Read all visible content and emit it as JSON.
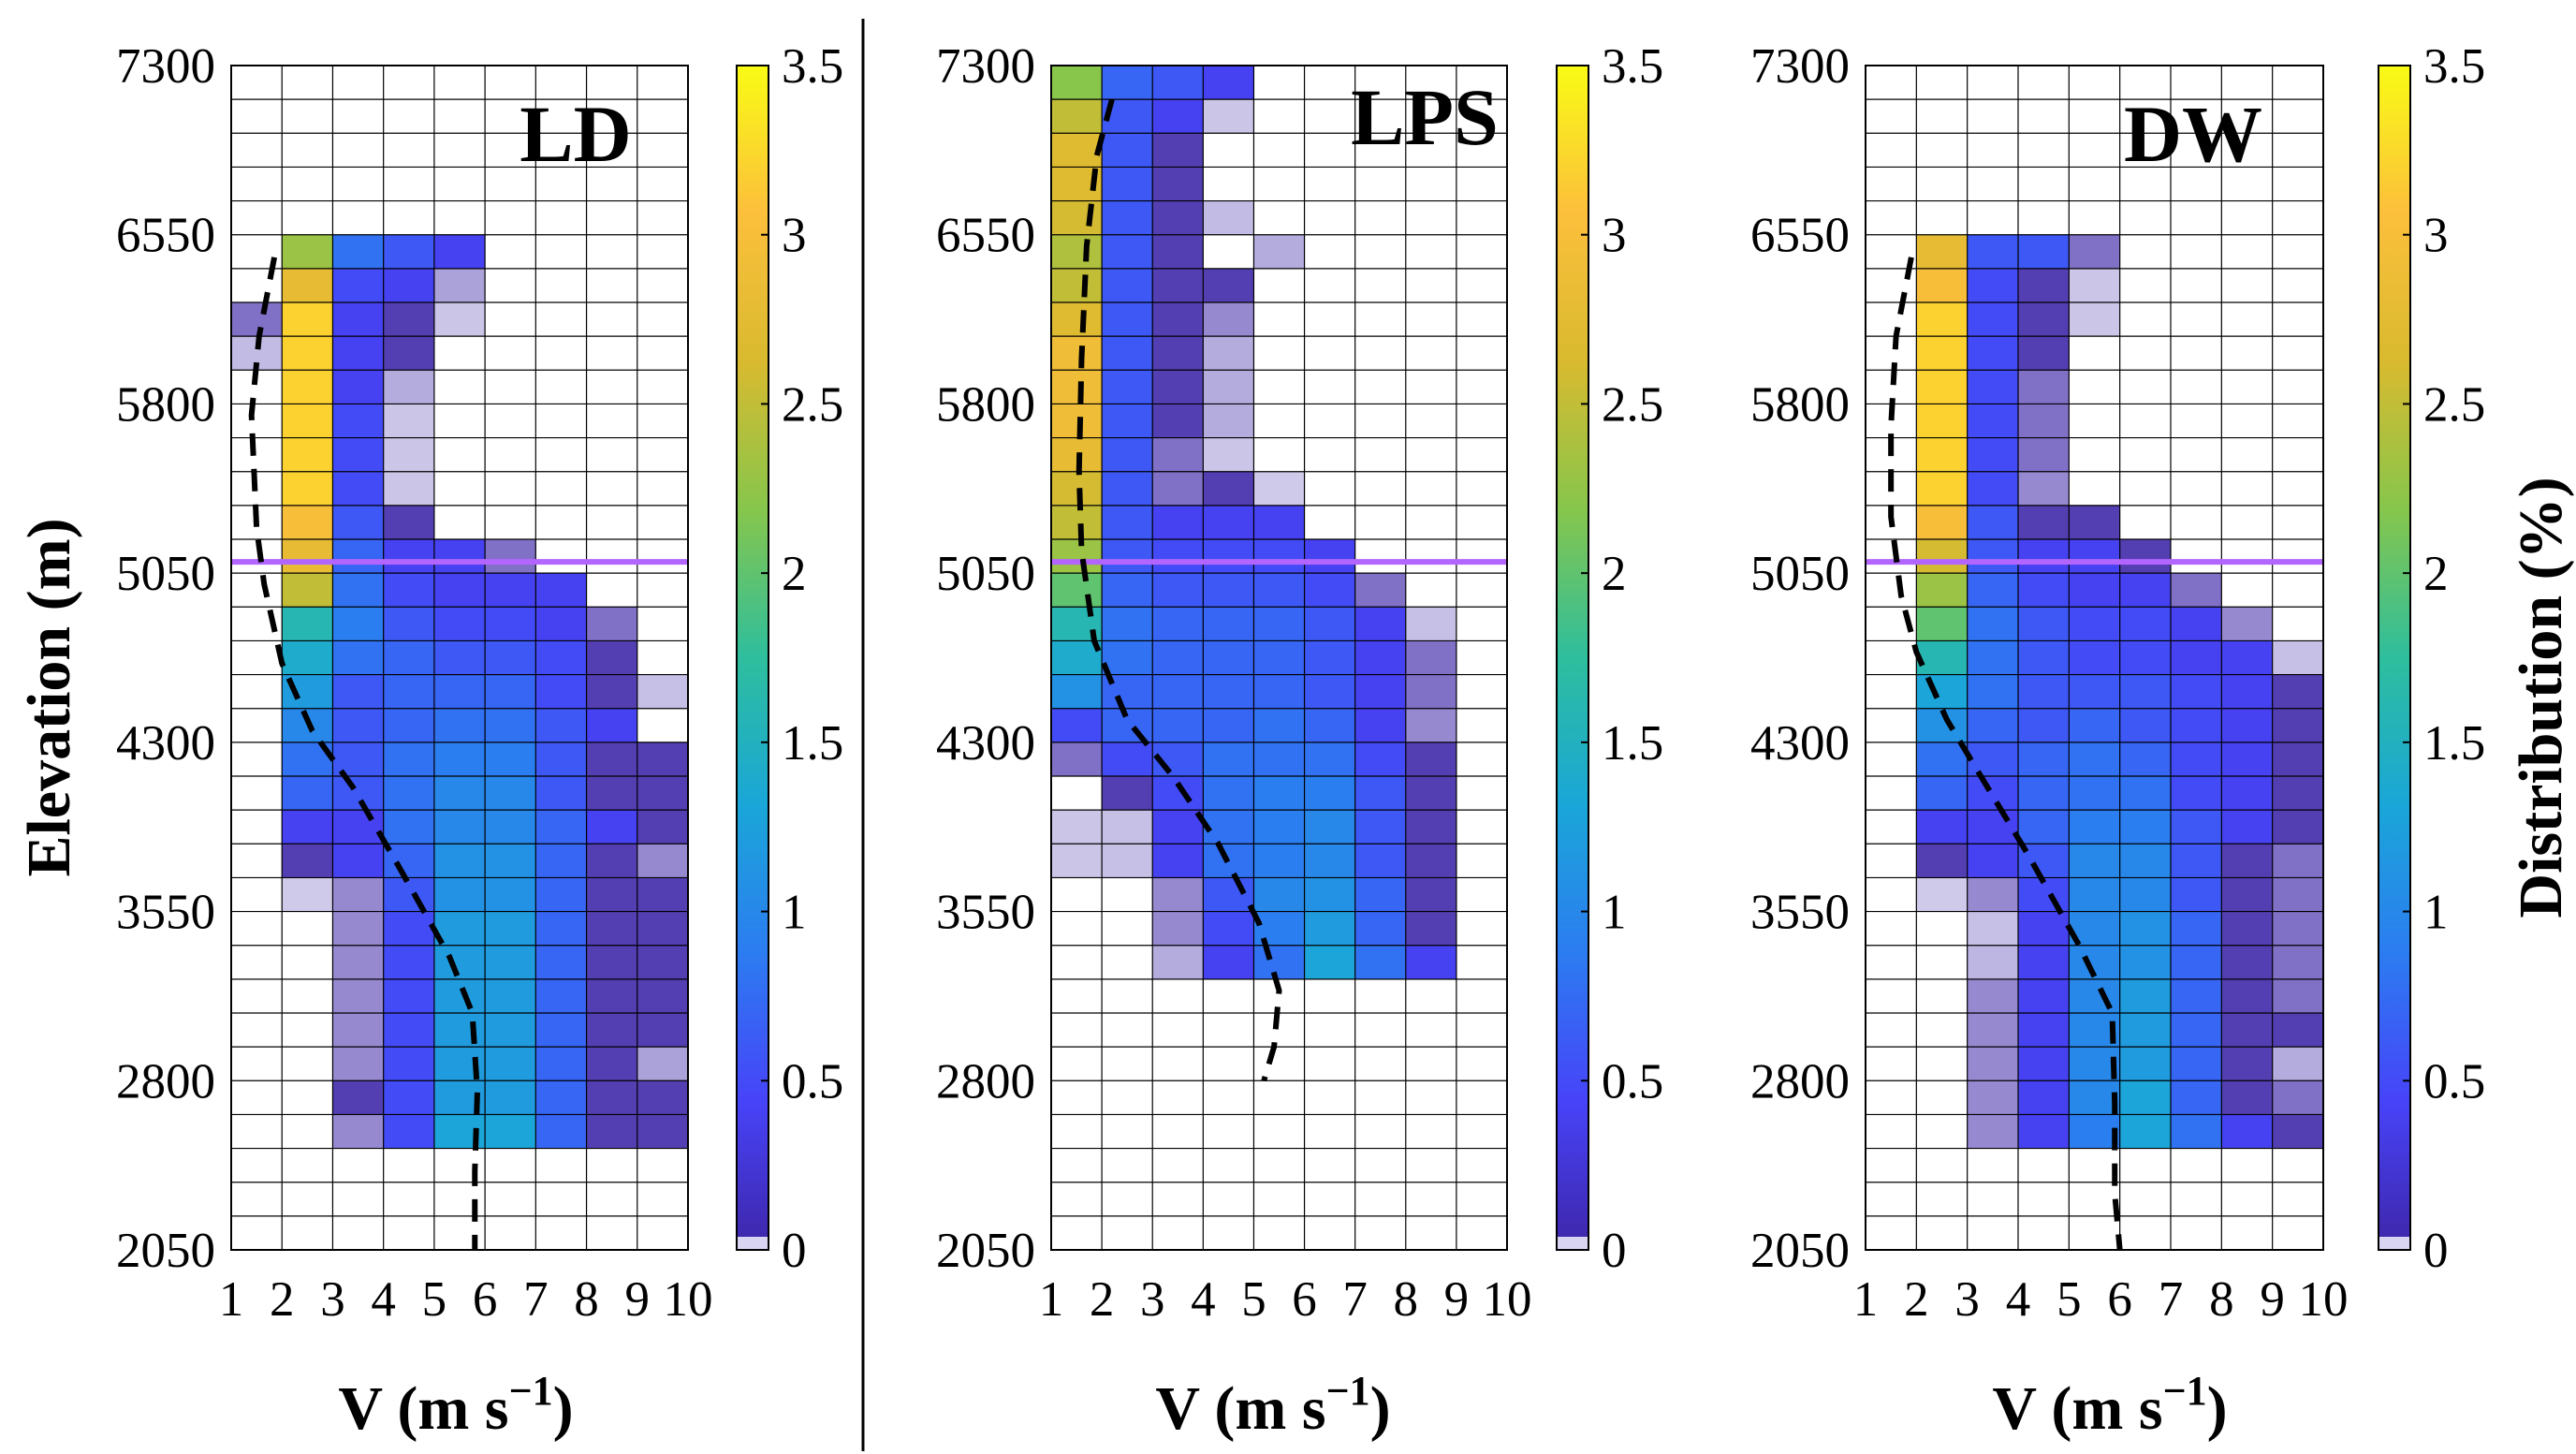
{
  "colors": {
    "colormap": "parula",
    "colormap_stops": [
      "#3e26a8",
      "#4743f8",
      "#2c7cf1",
      "#1aa6d8",
      "#2ebe9d",
      "#86c64c",
      "#d9ba2f",
      "#fcbf3c",
      "#f9fb15"
    ],
    "low_value_tint": "#ffffff",
    "snowline": "#b266ff",
    "fit_curve": "#000000",
    "grid": "#000000",
    "divider": "#000000"
  },
  "chart_data": [
    {
      "type": "heatmap",
      "title": "LD",
      "xlabel": "V (m s",
      "xlabel_sup": "−1",
      "xlabel_close": ")",
      "ylabel": "Elevation (m)",
      "xticks": [
        "1",
        "2",
        "3",
        "4",
        "5",
        "6",
        "7",
        "8",
        "9",
        "10"
      ],
      "yticks": [
        "7300",
        "6550",
        "5800",
        "5050",
        "4300",
        "3550",
        "2800",
        "2050"
      ],
      "xlim": [
        1,
        10
      ],
      "ylim": [
        2050,
        7300
      ],
      "elevation_bin_m": 150,
      "speed_bin_ms": 1,
      "grid": true,
      "colorbar": {
        "min": 0,
        "max": 3.5,
        "ticks": [
          "3.5",
          "3",
          "2.5",
          "2",
          "1.5",
          "1",
          "0.5",
          "0"
        ]
      },
      "snowline_elevation_m": 5100,
      "dashed_curve": [
        [
          1.85,
          6450
        ],
        [
          1.55,
          6100
        ],
        [
          1.4,
          5750
        ],
        [
          1.5,
          5250
        ],
        [
          1.65,
          5000
        ],
        [
          2.0,
          4650
        ],
        [
          2.6,
          4350
        ],
        [
          3.4,
          4100
        ],
        [
          4.3,
          3750
        ],
        [
          5.3,
          3350
        ],
        [
          5.75,
          3100
        ],
        [
          5.85,
          2750
        ],
        [
          5.8,
          2400
        ],
        [
          5.8,
          2050
        ]
      ],
      "rows_top_elevation_m": 6550,
      "values": [
        [
          0,
          2.3,
          0.8,
          0.6,
          0.4,
          0,
          0,
          0,
          0
        ],
        [
          0,
          2.8,
          0.5,
          0.4,
          0.1,
          0,
          0,
          0,
          0
        ],
        [
          0.2,
          3.2,
          0.4,
          0.3,
          0.03,
          0,
          0,
          0,
          0
        ],
        [
          0.05,
          3.2,
          0.4,
          0.3,
          0,
          0,
          0,
          0,
          0
        ],
        [
          0,
          3.2,
          0.4,
          0.08,
          0,
          0,
          0,
          0,
          0
        ],
        [
          0,
          3.2,
          0.5,
          0.03,
          0,
          0,
          0,
          0,
          0
        ],
        [
          0,
          3.2,
          0.5,
          0.03,
          0,
          0,
          0,
          0,
          0
        ],
        [
          0,
          3.2,
          0.5,
          0.03,
          0,
          0,
          0,
          0,
          0
        ],
        [
          0,
          3.0,
          0.6,
          0.3,
          0,
          0,
          0,
          0,
          0
        ],
        [
          0,
          2.8,
          0.7,
          0.4,
          0.4,
          0.2,
          0,
          0,
          0
        ],
        [
          0,
          2.5,
          0.8,
          0.5,
          0.4,
          0.4,
          0.4,
          0,
          0
        ],
        [
          0,
          1.6,
          0.9,
          0.6,
          0.5,
          0.5,
          0.4,
          0.2,
          0
        ],
        [
          0,
          1.4,
          0.8,
          0.7,
          0.6,
          0.6,
          0.5,
          0.3,
          0
        ],
        [
          0,
          1.2,
          0.6,
          0.7,
          0.7,
          0.7,
          0.5,
          0.3,
          0.04
        ],
        [
          0,
          1.0,
          0.6,
          0.7,
          0.8,
          0.8,
          0.6,
          0.4,
          0
        ],
        [
          0,
          0.8,
          0.6,
          0.8,
          0.9,
          0.9,
          0.6,
          0.3,
          0.3
        ],
        [
          0,
          0.7,
          0.6,
          0.8,
          1.0,
          1.0,
          0.6,
          0.3,
          0.3
        ],
        [
          0,
          0.4,
          0.4,
          0.8,
          1.0,
          1.0,
          0.7,
          0.4,
          0.3
        ],
        [
          0,
          0.3,
          0.4,
          0.7,
          1.1,
          1.1,
          0.7,
          0.3,
          0.15
        ],
        [
          0,
          0.02,
          0.15,
          0.6,
          1.1,
          1.1,
          0.7,
          0.3,
          0.3
        ],
        [
          0,
          0,
          0.15,
          0.5,
          1.2,
          1.2,
          0.7,
          0.3,
          0.3
        ],
        [
          0,
          0,
          0.15,
          0.5,
          1.2,
          1.2,
          0.7,
          0.3,
          0.3
        ],
        [
          0,
          0,
          0.15,
          0.5,
          1.2,
          1.2,
          0.7,
          0.3,
          0.3
        ],
        [
          0,
          0,
          0.15,
          0.5,
          1.2,
          1.2,
          0.7,
          0.3,
          0.3
        ],
        [
          0,
          0,
          0.15,
          0.5,
          1.2,
          1.2,
          0.7,
          0.3,
          0.1
        ],
        [
          0,
          0,
          0.3,
          0.5,
          1.2,
          1.2,
          0.7,
          0.3,
          0.3
        ],
        [
          0,
          0,
          0.15,
          0.5,
          1.3,
          1.3,
          0.7,
          0.3,
          0.3
        ]
      ]
    },
    {
      "type": "heatmap",
      "title": "LPS",
      "xlabel": "V (m s",
      "xlabel_sup": "−1",
      "xlabel_close": ")",
      "ylabel": "",
      "xticks": [
        "1",
        "2",
        "3",
        "4",
        "5",
        "6",
        "7",
        "8",
        "9",
        "10"
      ],
      "yticks": [
        "7300",
        "6550",
        "5800",
        "5050",
        "4300",
        "3550",
        "2800",
        "2050"
      ],
      "xlim": [
        1,
        10
      ],
      "ylim": [
        2050,
        7300
      ],
      "elevation_bin_m": 150,
      "speed_bin_ms": 1,
      "grid": true,
      "colorbar": {
        "min": 0,
        "max": 3.5,
        "ticks": [
          "3.5",
          "3",
          "2.5",
          "2",
          "1.5",
          "1",
          "0.5",
          "0"
        ]
      },
      "snowline_elevation_m": 5100,
      "dashed_curve": [
        [
          2.2,
          7150
        ],
        [
          1.9,
          6900
        ],
        [
          1.7,
          6500
        ],
        [
          1.6,
          6000
        ],
        [
          1.55,
          5500
        ],
        [
          1.6,
          5150
        ],
        [
          1.85,
          4750
        ],
        [
          2.5,
          4400
        ],
        [
          3.4,
          4150
        ],
        [
          4.3,
          3850
        ],
        [
          5.1,
          3500
        ],
        [
          5.5,
          3200
        ],
        [
          5.4,
          2950
        ],
        [
          5.2,
          2800
        ]
      ],
      "rows_top_elevation_m": 7300,
      "values": [
        [
          2.2,
          0.7,
          0.6,
          0.4,
          0,
          0,
          0,
          0,
          0
        ],
        [
          2.5,
          0.6,
          0.4,
          0.03,
          0,
          0,
          0,
          0,
          0
        ],
        [
          2.7,
          0.6,
          0.3,
          0,
          0,
          0,
          0,
          0,
          0
        ],
        [
          2.7,
          0.6,
          0.3,
          0,
          0,
          0,
          0,
          0,
          0
        ],
        [
          2.6,
          0.6,
          0.3,
          0.05,
          0,
          0,
          0,
          0,
          0
        ],
        [
          2.4,
          0.6,
          0.3,
          0,
          0.08,
          0,
          0,
          0,
          0
        ],
        [
          2.5,
          0.6,
          0.3,
          0.3,
          0,
          0,
          0,
          0,
          0
        ],
        [
          2.7,
          0.6,
          0.3,
          0.15,
          0,
          0,
          0,
          0,
          0
        ],
        [
          2.9,
          0.6,
          0.3,
          0.08,
          0,
          0,
          0,
          0,
          0
        ],
        [
          2.9,
          0.6,
          0.3,
          0.08,
          0,
          0,
          0,
          0,
          0
        ],
        [
          2.9,
          0.6,
          0.3,
          0.08,
          0,
          0,
          0,
          0,
          0
        ],
        [
          2.8,
          0.6,
          0.2,
          0.03,
          0,
          0,
          0,
          0,
          0
        ],
        [
          2.6,
          0.6,
          0.2,
          0.3,
          0.02,
          0,
          0,
          0,
          0
        ],
        [
          2.5,
          0.6,
          0.4,
          0.4,
          0.4,
          0,
          0,
          0,
          0
        ],
        [
          2.3,
          0.6,
          0.5,
          0.5,
          0.5,
          0.4,
          0,
          0,
          0
        ],
        [
          2.0,
          0.7,
          0.6,
          0.6,
          0.6,
          0.5,
          0.2,
          0,
          0
        ],
        [
          1.6,
          0.8,
          0.7,
          0.7,
          0.7,
          0.6,
          0.4,
          0.04,
          0
        ],
        [
          1.4,
          0.8,
          0.7,
          0.7,
          0.7,
          0.6,
          0.4,
          0.2,
          0
        ],
        [
          1.1,
          0.7,
          0.7,
          0.7,
          0.7,
          0.6,
          0.4,
          0.2,
          0
        ],
        [
          0.5,
          0.7,
          0.7,
          0.7,
          0.8,
          0.7,
          0.4,
          0.15,
          0
        ],
        [
          0.2,
          0.5,
          0.6,
          0.8,
          0.8,
          0.8,
          0.5,
          0.3,
          0
        ],
        [
          0,
          0.3,
          0.5,
          0.8,
          0.9,
          0.9,
          0.6,
          0.3,
          0
        ],
        [
          0.03,
          0.04,
          0.4,
          0.8,
          0.9,
          1.0,
          0.6,
          0.3,
          0
        ],
        [
          0.03,
          0.04,
          0.4,
          0.8,
          0.9,
          1.0,
          0.6,
          0.3,
          0
        ],
        [
          0,
          0,
          0.15,
          0.6,
          1.0,
          1.1,
          0.7,
          0.3,
          0
        ],
        [
          0,
          0,
          0.15,
          0.5,
          0.9,
          1.2,
          0.7,
          0.3,
          0
        ],
        [
          0,
          0,
          0.08,
          0.4,
          0.8,
          1.3,
          0.8,
          0.4,
          0
        ]
      ]
    },
    {
      "type": "heatmap",
      "title": "DW",
      "xlabel": "V (m s",
      "xlabel_sup": "−1",
      "xlabel_close": ")",
      "ylabel": "",
      "colorbar_label": "Distribution (%)",
      "xticks": [
        "1",
        "2",
        "3",
        "4",
        "5",
        "6",
        "7",
        "8",
        "9",
        "10"
      ],
      "yticks": [
        "7300",
        "6550",
        "5800",
        "5050",
        "4300",
        "3550",
        "2800",
        "2050"
      ],
      "xlim": [
        1,
        10
      ],
      "ylim": [
        2050,
        7300
      ],
      "elevation_bin_m": 150,
      "speed_bin_ms": 1,
      "grid": true,
      "colorbar": {
        "min": 0,
        "max": 3.5,
        "ticks": [
          "3.5",
          "3",
          "2.5",
          "2",
          "1.5",
          "1",
          "0.5",
          "0"
        ]
      },
      "snowline_elevation_m": 5100,
      "dashed_curve": [
        [
          1.9,
          6450
        ],
        [
          1.6,
          6100
        ],
        [
          1.5,
          5700
        ],
        [
          1.5,
          5300
        ],
        [
          1.7,
          4950
        ],
        [
          2.0,
          4700
        ],
        [
          2.6,
          4400
        ],
        [
          3.4,
          4100
        ],
        [
          4.2,
          3800
        ],
        [
          5.2,
          3400
        ],
        [
          5.85,
          3100
        ],
        [
          5.9,
          2700
        ],
        [
          5.9,
          2300
        ],
        [
          6.0,
          2050
        ]
      ],
      "rows_top_elevation_m": 6550,
      "values": [
        [
          0,
          2.8,
          0.6,
          0.6,
          0.2,
          0,
          0,
          0,
          0
        ],
        [
          0,
          3.0,
          0.5,
          0.3,
          0.03,
          0,
          0,
          0,
          0
        ],
        [
          0,
          3.2,
          0.5,
          0.3,
          0.03,
          0,
          0,
          0,
          0
        ],
        [
          0,
          3.2,
          0.5,
          0.3,
          0,
          0,
          0,
          0,
          0
        ],
        [
          0,
          3.2,
          0.5,
          0.2,
          0,
          0,
          0,
          0,
          0
        ],
        [
          0,
          3.2,
          0.5,
          0.2,
          0,
          0,
          0,
          0,
          0
        ],
        [
          0,
          3.2,
          0.5,
          0.2,
          0,
          0,
          0,
          0,
          0
        ],
        [
          0,
          3.2,
          0.5,
          0.15,
          0,
          0,
          0,
          0,
          0
        ],
        [
          0,
          3.0,
          0.6,
          0.3,
          0.3,
          0,
          0,
          0,
          0
        ],
        [
          0,
          2.6,
          0.6,
          0.4,
          0.4,
          0.3,
          0,
          0,
          0
        ],
        [
          0,
          2.3,
          0.7,
          0.5,
          0.4,
          0.4,
          0.2,
          0,
          0
        ],
        [
          0,
          2.0,
          0.8,
          0.6,
          0.5,
          0.5,
          0.4,
          0.15,
          0
        ],
        [
          0,
          1.6,
          0.8,
          0.6,
          0.5,
          0.5,
          0.4,
          0.4,
          0.04
        ],
        [
          0,
          1.3,
          0.8,
          0.6,
          0.6,
          0.6,
          0.5,
          0.4,
          0.3
        ],
        [
          0,
          1.1,
          0.7,
          0.6,
          0.7,
          0.6,
          0.5,
          0.4,
          0.3
        ],
        [
          0,
          0.8,
          0.6,
          0.7,
          0.8,
          0.7,
          0.5,
          0.4,
          0.3
        ],
        [
          0,
          0.7,
          0.5,
          0.7,
          0.8,
          0.8,
          0.5,
          0.4,
          0.3
        ],
        [
          0,
          0.4,
          0.4,
          0.7,
          0.9,
          0.9,
          0.6,
          0.4,
          0.3
        ],
        [
          0,
          0.3,
          0.4,
          0.6,
          1.0,
          1.0,
          0.6,
          0.3,
          0.2
        ],
        [
          0,
          0.02,
          0.15,
          0.5,
          1.0,
          1.0,
          0.6,
          0.3,
          0.2
        ],
        [
          0,
          0,
          0.04,
          0.4,
          1.0,
          1.1,
          0.7,
          0.3,
          0.2
        ],
        [
          0,
          0,
          0.06,
          0.4,
          1.0,
          1.1,
          0.7,
          0.3,
          0.2
        ],
        [
          0,
          0,
          0.15,
          0.4,
          1.0,
          1.2,
          0.7,
          0.3,
          0.2
        ],
        [
          0,
          0,
          0.15,
          0.4,
          1.0,
          1.2,
          0.7,
          0.3,
          0.3
        ],
        [
          0,
          0,
          0.15,
          0.4,
          1.0,
          1.2,
          0.7,
          0.3,
          0.08
        ],
        [
          0,
          0,
          0.15,
          0.4,
          1.0,
          1.3,
          0.7,
          0.3,
          0.2
        ],
        [
          0,
          0,
          0.15,
          0.4,
          0.9,
          1.3,
          0.8,
          0.4,
          0.3
        ]
      ]
    }
  ]
}
